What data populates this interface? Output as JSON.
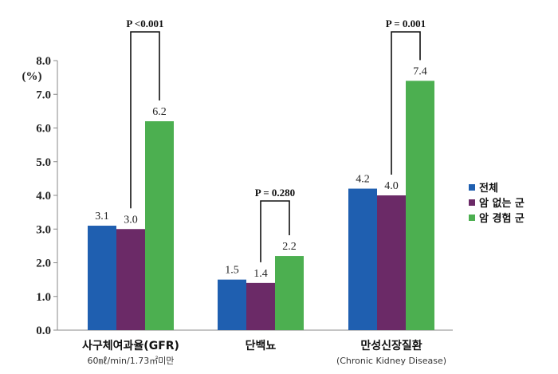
{
  "chart_data": {
    "type": "bar",
    "ylabel": "(%)",
    "ylim": [
      0,
      8
    ],
    "yticks": [
      "0.0",
      "1.0",
      "2.0",
      "3.0",
      "4.0",
      "5.0",
      "6.0",
      "7.0",
      "8.0"
    ],
    "grid": false,
    "legend_position": "right",
    "categories": [
      "사구체여과율(GFR)",
      "단백뇨",
      "만성신장질환"
    ],
    "category_sublabels": [
      "60㎖/min/1.73㎡미만",
      "",
      "(Chronic Kidney Disease)"
    ],
    "series": [
      {
        "name": "전체",
        "color": "#1f5fb0",
        "values": [
          3.1,
          1.5,
          4.2
        ],
        "labels": [
          "3.1",
          "1.5",
          "4.2"
        ]
      },
      {
        "name": "암 없는 군",
        "color": "#6b2a67",
        "values": [
          3.0,
          1.4,
          4.0
        ],
        "labels": [
          "3.0",
          "1.4",
          "4.0"
        ]
      },
      {
        "name": "암 경험 군",
        "color": "#4caf50",
        "values": [
          6.2,
          2.2,
          7.4
        ],
        "labels": [
          "6.2",
          "2.2",
          "7.4"
        ]
      }
    ],
    "annotations": [
      "P <0.001",
      "P = 0.280",
      "P = 0.001"
    ]
  }
}
